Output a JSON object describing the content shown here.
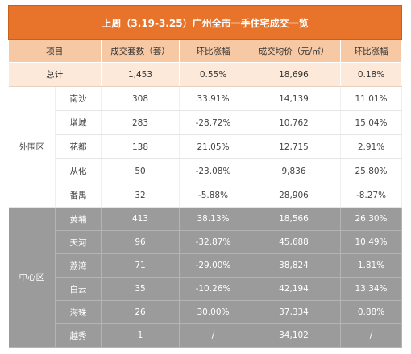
{
  "title": "上周（3.19-3.25）广州全市一手住宅成交一览",
  "headers": {
    "item": "项目",
    "units": "成交套数（套）",
    "units_change": "环比涨幅",
    "avg_price": "成交均价（元/㎡）",
    "price_change": "环比涨幅"
  },
  "total": {
    "label": "总计",
    "units": "1,453",
    "units_change": "0.55%",
    "avg_price": "18,696",
    "price_change": "0.18%"
  },
  "outer": {
    "label": "外围区",
    "rows": [
      {
        "district": "南沙",
        "units": "308",
        "units_change": "33.91%",
        "avg_price": "14,139",
        "price_change": "11.01%"
      },
      {
        "district": "增城",
        "units": "283",
        "units_change": "-28.72%",
        "avg_price": "10,762",
        "price_change": "15.04%"
      },
      {
        "district": "花都",
        "units": "138",
        "units_change": "21.05%",
        "avg_price": "12,715",
        "price_change": "2.91%"
      },
      {
        "district": "从化",
        "units": "50",
        "units_change": "-23.08%",
        "avg_price": "9,836",
        "price_change": "25.80%"
      },
      {
        "district": "番禺",
        "units": "32",
        "units_change": "-5.88%",
        "avg_price": "28,906",
        "price_change": "-8.27%"
      }
    ]
  },
  "center": {
    "label": "中心区",
    "rows": [
      {
        "district": "黄埔",
        "units": "413",
        "units_change": "38.13%",
        "avg_price": "18,566",
        "price_change": "26.30%"
      },
      {
        "district": "天河",
        "units": "96",
        "units_change": "-32.87%",
        "avg_price": "45,688",
        "price_change": "10.49%"
      },
      {
        "district": "荔湾",
        "units": "71",
        "units_change": "-29.00%",
        "avg_price": "38,824",
        "price_change": "1.81%"
      },
      {
        "district": "白云",
        "units": "35",
        "units_change": "-10.26%",
        "avg_price": "42,194",
        "price_change": "13.34%"
      },
      {
        "district": "海珠",
        "units": "26",
        "units_change": "30.00%",
        "avg_price": "37,334",
        "price_change": "0.88%"
      },
      {
        "district": "越秀",
        "units": "1",
        "units_change": "/",
        "avg_price": "34,102",
        "price_change": "/"
      }
    ]
  }
}
